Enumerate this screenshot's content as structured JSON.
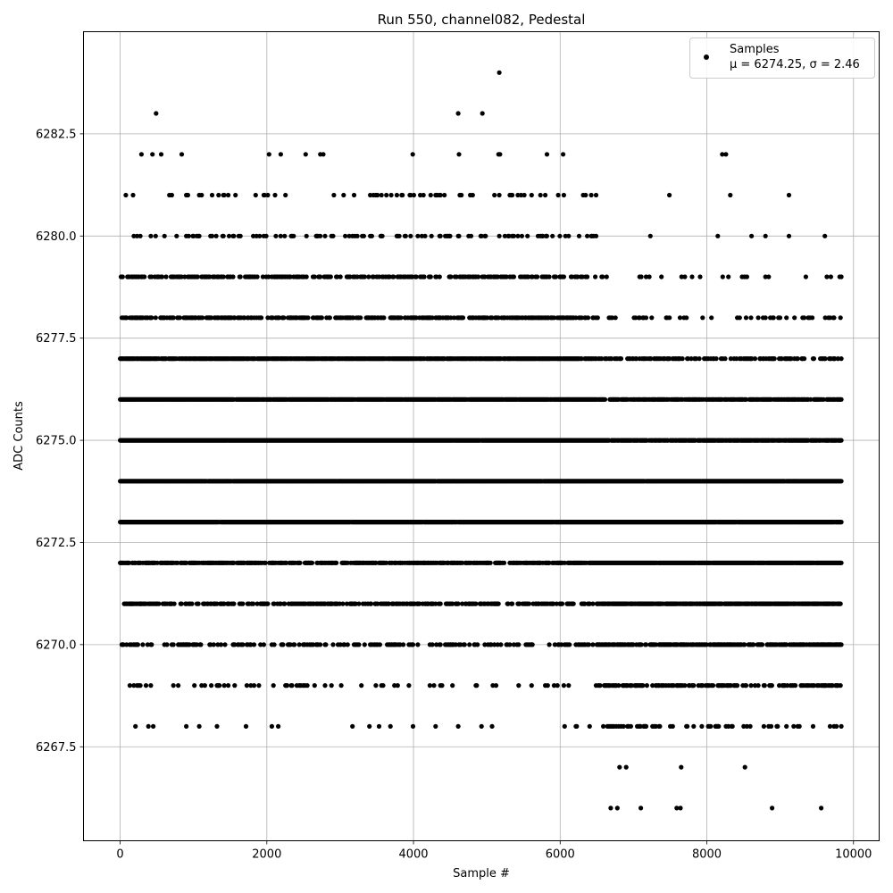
{
  "chart_data": {
    "type": "scatter",
    "title": "Run 550, channel082, Pedestal",
    "xlabel": "Sample #",
    "ylabel": "ADC Counts",
    "xlim": [
      -500,
      10350
    ],
    "ylim": [
      6265.2,
      6285.0
    ],
    "xticks": [
      0,
      2000,
      4000,
      6000,
      8000,
      10000
    ],
    "xtick_labels": [
      "0",
      "2000",
      "4000",
      "6000",
      "8000",
      "10000"
    ],
    "yticks": [
      6267.5,
      6270.0,
      6272.5,
      6275.0,
      6277.5,
      6280.0,
      6282.5
    ],
    "ytick_labels": [
      "6267.5",
      "6270.0",
      "6272.5",
      "6275.0",
      "6277.5",
      "6280.0",
      "6282.5"
    ],
    "grid": true,
    "legend": {
      "placement": "top-right",
      "entries": [
        {
          "label": "Samples",
          "stats": "μ = 6274.25, σ = 2.46"
        }
      ]
    },
    "series": [
      {
        "name": "Samples",
        "color": "#000000",
        "marker": "circle",
        "x_range": [
          0,
          9840
        ],
        "mean": 6274.25,
        "std": 2.46,
        "points": [
          [
            5170,
            6284
          ],
          [
            490,
            6283
          ],
          [
            4610,
            6283
          ],
          [
            4940,
            6283
          ],
          [
            290,
            6282
          ],
          [
            440,
            6282
          ],
          [
            560,
            6282
          ],
          [
            840,
            6282
          ],
          [
            2030,
            6282
          ],
          [
            2190,
            6282
          ],
          [
            2530,
            6282
          ],
          [
            2730,
            6282
          ],
          [
            2770,
            6282
          ],
          [
            3990,
            6282
          ],
          [
            4620,
            6282
          ],
          [
            5160,
            6282
          ],
          [
            5180,
            6282
          ],
          [
            5820,
            6282
          ],
          [
            6040,
            6282
          ],
          [
            8210,
            6282
          ],
          [
            8260,
            6282
          ],
          [
            7230,
            6280
          ],
          [
            8150,
            6280
          ],
          [
            8610,
            6280
          ],
          [
            8800,
            6280
          ],
          [
            9120,
            6280
          ],
          [
            9610,
            6280
          ],
          [
            7490,
            6281
          ],
          [
            8320,
            6281
          ],
          [
            9120,
            6281
          ],
          [
            6810,
            6267
          ],
          [
            6900,
            6267
          ],
          [
            7650,
            6267
          ],
          [
            8520,
            6267
          ],
          [
            6690,
            6266
          ],
          [
            6780,
            6266
          ],
          [
            7100,
            6266
          ],
          [
            7590,
            6266
          ],
          [
            7640,
            6266
          ],
          [
            8890,
            6266
          ],
          [
            9560,
            6266
          ]
        ]
      }
    ]
  }
}
